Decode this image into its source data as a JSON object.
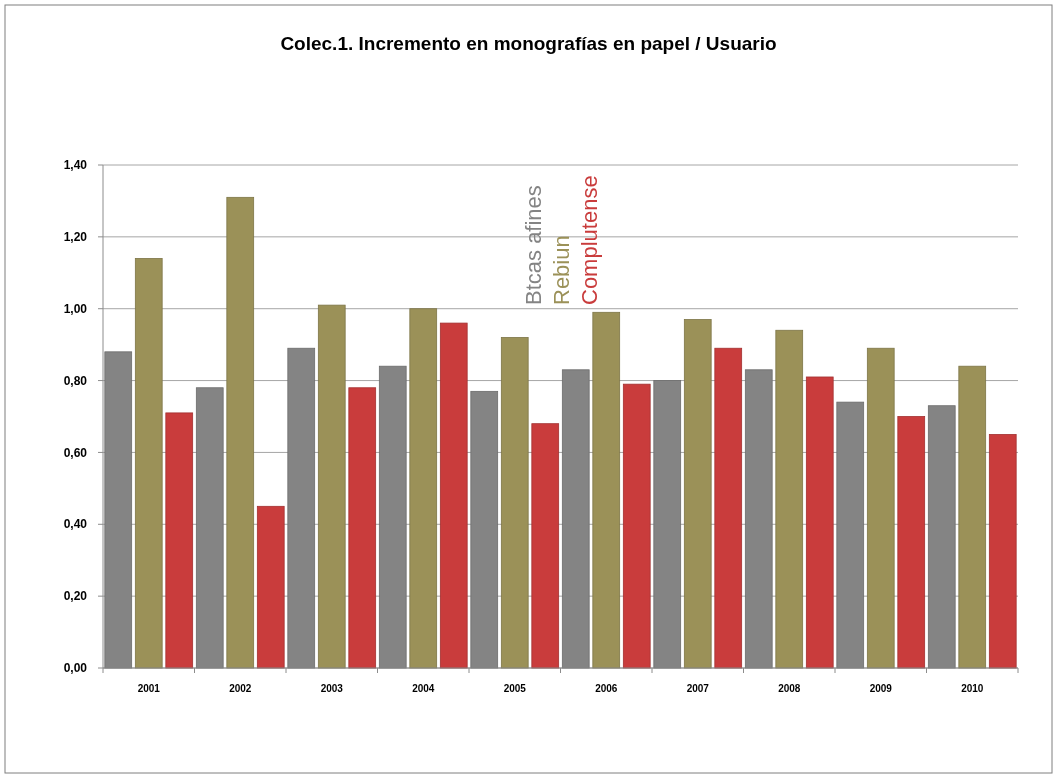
{
  "chart_data": {
    "type": "bar",
    "title": "Colec.1. Incremento en monografías en papel / Usuario",
    "categories": [
      "2001",
      "2002",
      "2003",
      "2004",
      "2005",
      "2006",
      "2007",
      "2008",
      "2009",
      "2010"
    ],
    "series": [
      {
        "name": "Btcas afines",
        "color": "#848484",
        "values": [
          0.88,
          0.78,
          0.89,
          0.84,
          0.77,
          0.83,
          0.8,
          0.83,
          0.74,
          0.73
        ]
      },
      {
        "name": "Rebiun",
        "color": "#9b9158",
        "values": [
          1.14,
          1.31,
          1.01,
          1.0,
          0.92,
          0.99,
          0.97,
          0.94,
          0.89,
          0.84
        ]
      },
      {
        "name": "Complutense",
        "color": "#c93c3c",
        "values": [
          0.71,
          0.45,
          0.78,
          0.96,
          0.68,
          0.79,
          0.89,
          0.81,
          0.7,
          0.65
        ]
      }
    ],
    "ylim": [
      0,
      1.4
    ],
    "yticks": [
      {
        "value": 0,
        "label": "0,00"
      },
      {
        "value": 0.2,
        "label": "0,20"
      },
      {
        "value": 0.4,
        "label": "0,40"
      },
      {
        "value": 0.6,
        "label": "0,60"
      },
      {
        "value": 0.8,
        "label": "0,80"
      },
      {
        "value": 1,
        "label": "1,00"
      },
      {
        "value": 1.2,
        "label": "1,20"
      },
      {
        "value": 1.4,
        "label": "1,40"
      }
    ],
    "grid": "y",
    "legend": "top"
  }
}
